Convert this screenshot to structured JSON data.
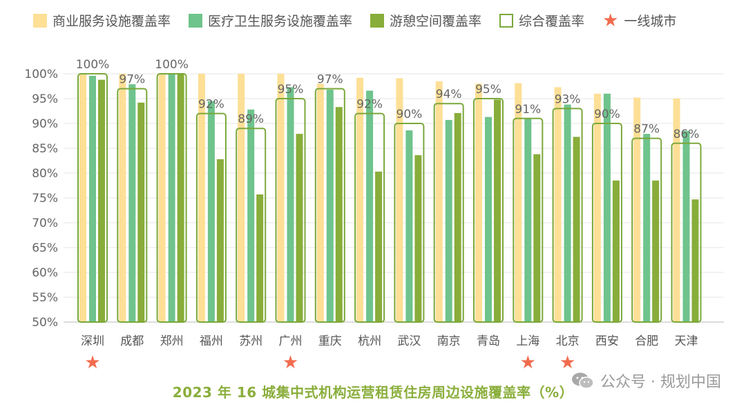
{
  "legend": {
    "commercial": "商业服务设施覆盖率",
    "medical": "医疗卫生服务设施覆盖率",
    "leisure": "游憩空间覆盖率",
    "overall": "综合覆盖率",
    "tier1": "一线城市"
  },
  "title": "2023 年 16 城集中式机构运营租赁住房周边设施覆盖率（%）",
  "watermark": "公众号 · 规划中国",
  "colors": {
    "commercial": "#fddf96",
    "medical": "#6fc38c",
    "leisure": "#88ad3a",
    "overall": "#7aa83a",
    "star": "#f26b4f"
  },
  "chart_data": {
    "type": "bar",
    "categories": [
      "深圳",
      "成都",
      "郑州",
      "福州",
      "苏州",
      "广州",
      "重庆",
      "杭州",
      "武汉",
      "南京",
      "青岛",
      "上海",
      "北京",
      "西安",
      "合肥",
      "天津"
    ],
    "series": [
      {
        "name": "商业服务设施覆盖率",
        "values": [
          100,
          100,
          100,
          100,
          100,
          100,
          98,
          99.2,
          99.1,
          98.5,
          98,
          98.1,
          97.3,
          96,
          95.2,
          95
        ]
      },
      {
        "name": "医疗卫生服务设施覆盖率",
        "values": [
          99.6,
          97.9,
          100,
          94.5,
          92.8,
          97.3,
          96.8,
          96.6,
          88.6,
          90.7,
          91.3,
          91,
          93.8,
          96,
          87.9,
          88.5
        ]
      },
      {
        "name": "游憩空间覆盖率",
        "values": [
          98.8,
          94.2,
          100,
          82.8,
          75.7,
          87.9,
          93.3,
          80.3,
          83.6,
          92.1,
          94.8,
          83.8,
          87.3,
          78.5,
          78.5,
          74.7
        ]
      },
      {
        "name": "综合覆盖率",
        "values": [
          100,
          97,
          100,
          92,
          89,
          95,
          97,
          92,
          90,
          94,
          95,
          91,
          93,
          90,
          87,
          86
        ]
      }
    ],
    "data_labels": [
      "100%",
      "97%",
      "100%",
      "92%",
      "89%",
      "95%",
      "97%",
      "92%",
      "90%",
      "94%",
      "95%",
      "91%",
      "93%",
      "90%",
      "87%",
      "86%"
    ],
    "tier1_cities": [
      "深圳",
      "广州",
      "上海",
      "北京"
    ],
    "y_ticks": [
      "50%",
      "55%",
      "60%",
      "65%",
      "70%",
      "75%",
      "80%",
      "85%",
      "90%",
      "95%",
      "100%"
    ],
    "ylim": [
      50,
      100
    ],
    "grid": true,
    "legend_position": "top"
  }
}
